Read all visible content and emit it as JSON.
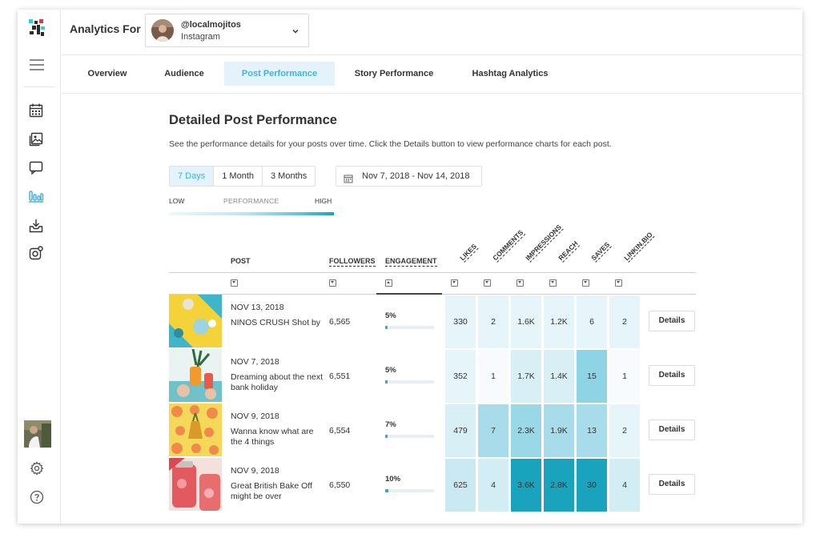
{
  "header": {
    "analytics_label": "Analytics For",
    "account_handle": "@localmojitos",
    "account_platform": "Instagram"
  },
  "sidebar": {
    "icons": [
      "logo-icon",
      "menu-icon",
      "calendar-icon",
      "image-icon",
      "comment-icon",
      "analytics-icon",
      "download-icon",
      "settings-link-icon",
      "user-avatar",
      "gear-icon",
      "help-icon"
    ]
  },
  "tabs": [
    {
      "label": "Overview",
      "active": false
    },
    {
      "label": "Audience",
      "active": false
    },
    {
      "label": "Post Performance",
      "active": true
    },
    {
      "label": "Story Performance",
      "active": false
    },
    {
      "label": "Hashtag Analytics",
      "active": false
    }
  ],
  "main": {
    "title": "Detailed Post Performance",
    "description": "See the performance details for your posts over time. Click the Details button to view performance charts for each post.",
    "ranges": [
      "7 Days",
      "1 Month",
      "3 Months"
    ],
    "selected_range": "7 Days",
    "date_range": "Nov 7, 2018 - Nov 14, 2018",
    "legend": {
      "low": "LOW",
      "label": "PERFORMANCE",
      "high": "HIGH"
    }
  },
  "table": {
    "columns": {
      "post": "POST",
      "followers": "FOLLOWERS",
      "engagement": "ENGAGEMENT",
      "likes": "LIKES",
      "comments": "COMMENTS",
      "impressions": "IMPRESSIONS",
      "reach": "REACH",
      "saves": "SAVES",
      "linkinbio": "LINKIN.BIO"
    },
    "details_label": "Details",
    "rows": [
      {
        "date": "NOV 13, 2018",
        "text": "NINOS CRUSH Shot by",
        "followers": "6,565",
        "engagement": "5%",
        "engagement_pct": 5,
        "likes": "330",
        "comments": "2",
        "impressions": "1.6K",
        "reach": "1.2K",
        "saves": "6",
        "linkinbio": "2"
      },
      {
        "date": "NOV 7, 2018",
        "text": "Dreaming about the next bank holiday",
        "followers": "6,551",
        "engagement": "5%",
        "engagement_pct": 5,
        "likes": "352",
        "comments": "1",
        "impressions": "1.7K",
        "reach": "1.4K",
        "saves": "15",
        "linkinbio": "1"
      },
      {
        "date": "NOV 9, 2018",
        "text": "Wanna know what are the 4 things",
        "followers": "6,554",
        "engagement": "7%",
        "engagement_pct": 7,
        "likes": "479",
        "comments": "7",
        "impressions": "2.3K",
        "reach": "1.9K",
        "saves": "13",
        "linkinbio": "2"
      },
      {
        "date": "NOV 9, 2018",
        "text": "Great British Bake Off might be over",
        "followers": "6,550",
        "engagement": "10%",
        "engagement_pct": 10,
        "likes": "625",
        "comments": "4",
        "impressions": "3.6K",
        "reach": "2.8K",
        "saves": "30",
        "linkinbio": "4"
      }
    ]
  },
  "colors": {
    "accent": "#3eb4e2",
    "accent_bg": "#e4f3fb",
    "heat_low": "#e8f6fa",
    "heat_mid": "#bfe6f1",
    "heat_high": "#1aa3bd"
  }
}
